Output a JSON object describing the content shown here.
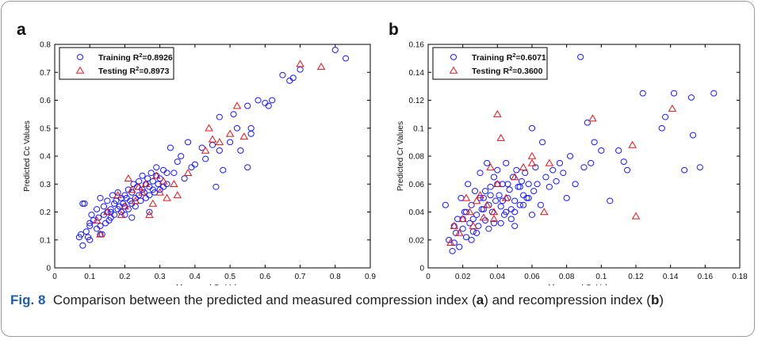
{
  "caption": {
    "fig_label": "Fig. 8",
    "text_1": "Comparison between the predicted and measured compression index (",
    "bold_1": "a",
    "text_2": ") and recompression index (",
    "bold_2": "b",
    "text_3": ")"
  },
  "colors": {
    "training": "#1a1aff",
    "testing": "#e0161a",
    "caption_label": "#1f5fa8"
  },
  "chart_data": [
    {
      "panel": "a",
      "type": "scatter",
      "xlabel": "Measured Cc Values",
      "ylabel": "Predicted Cc Values",
      "xlim": [
        0,
        0.9
      ],
      "ylim": [
        0,
        0.8
      ],
      "xticks": [
        "0",
        "0.1",
        "0.2",
        "0.3",
        "0.4",
        "0.5",
        "0.6",
        "0.7",
        "0.8",
        "0.9"
      ],
      "yticks": [
        "0",
        "0.1",
        "0.2",
        "0.3",
        "0.4",
        "0.5",
        "0.6",
        "0.7",
        "0.8"
      ],
      "legend_position": "top-left",
      "series": [
        {
          "name": "Training R²=0.8926",
          "legend_main": "Training R",
          "legend_sup": "2",
          "legend_rest": "=0.8926",
          "marker": "circle",
          "x": [
            0.07,
            0.075,
            0.08,
            0.085,
            0.09,
            0.095,
            0.1,
            0.1,
            0.105,
            0.11,
            0.12,
            0.12,
            0.125,
            0.13,
            0.13,
            0.135,
            0.14,
            0.14,
            0.145,
            0.15,
            0.15,
            0.155,
            0.16,
            0.16,
            0.165,
            0.17,
            0.17,
            0.175,
            0.18,
            0.18,
            0.185,
            0.19,
            0.19,
            0.195,
            0.2,
            0.2,
            0.2,
            0.205,
            0.21,
            0.21,
            0.215,
            0.22,
            0.22,
            0.225,
            0.23,
            0.23,
            0.235,
            0.24,
            0.24,
            0.245,
            0.25,
            0.25,
            0.255,
            0.26,
            0.26,
            0.265,
            0.27,
            0.27,
            0.275,
            0.28,
            0.28,
            0.285,
            0.29,
            0.29,
            0.295,
            0.3,
            0.3,
            0.31,
            0.31,
            0.32,
            0.33,
            0.34,
            0.35,
            0.36,
            0.37,
            0.38,
            0.39,
            0.4,
            0.42,
            0.43,
            0.45,
            0.46,
            0.47,
            0.48,
            0.5,
            0.51,
            0.52,
            0.53,
            0.55,
            0.55,
            0.56,
            0.58,
            0.6,
            0.61,
            0.62,
            0.65,
            0.67,
            0.68,
            0.7,
            0.8,
            0.83,
            0.08,
            0.1,
            0.13,
            0.16,
            0.22,
            0.27,
            0.32,
            0.47,
            0.56
          ],
          "y": [
            0.11,
            0.12,
            0.08,
            0.23,
            0.13,
            0.11,
            0.16,
            0.1,
            0.19,
            0.17,
            0.14,
            0.21,
            0.18,
            0.15,
            0.25,
            0.12,
            0.19,
            0.22,
            0.16,
            0.2,
            0.24,
            0.17,
            0.21,
            0.18,
            0.26,
            0.23,
            0.19,
            0.24,
            0.21,
            0.27,
            0.22,
            0.25,
            0.2,
            0.23,
            0.26,
            0.22,
            0.19,
            0.25,
            0.28,
            0.21,
            0.24,
            0.27,
            0.23,
            0.3,
            0.25,
            0.22,
            0.29,
            0.26,
            0.31,
            0.24,
            0.28,
            0.33,
            0.27,
            0.3,
            0.25,
            0.32,
            0.29,
            0.26,
            0.34,
            0.28,
            0.31,
            0.27,
            0.33,
            0.36,
            0.3,
            0.28,
            0.32,
            0.29,
            0.35,
            0.3,
            0.43,
            0.34,
            0.38,
            0.4,
            0.32,
            0.45,
            0.36,
            0.37,
            0.43,
            0.39,
            0.44,
            0.29,
            0.54,
            0.35,
            0.45,
            0.55,
            0.5,
            0.42,
            0.58,
            0.36,
            0.5,
            0.6,
            0.59,
            0.58,
            0.6,
            0.69,
            0.67,
            0.68,
            0.71,
            0.78,
            0.75,
            0.23,
            0.15,
            0.12,
            0.2,
            0.18,
            0.2,
            0.34,
            0.42,
            0.48
          ]
        },
        {
          "name": "Testing R²=0.8973",
          "legend_main": "Testing R",
          "legend_sup": "2",
          "legend_rest": "=0.8973",
          "marker": "triangle",
          "x": [
            0.12,
            0.13,
            0.15,
            0.18,
            0.2,
            0.21,
            0.22,
            0.23,
            0.25,
            0.26,
            0.27,
            0.28,
            0.29,
            0.3,
            0.32,
            0.34,
            0.35,
            0.38,
            0.43,
            0.44,
            0.45,
            0.47,
            0.5,
            0.52,
            0.54,
            0.7,
            0.76,
            0.19,
            0.24,
            0.31
          ],
          "y": [
            0.17,
            0.12,
            0.2,
            0.26,
            0.22,
            0.32,
            0.28,
            0.24,
            0.27,
            0.3,
            0.19,
            0.23,
            0.33,
            0.27,
            0.25,
            0.3,
            0.26,
            0.34,
            0.42,
            0.5,
            0.46,
            0.45,
            0.48,
            0.58,
            0.47,
            0.73,
            0.72,
            0.19,
            0.29,
            0.31
          ]
        }
      ]
    },
    {
      "panel": "b",
      "type": "scatter",
      "xlabel": "Measured Cr Values",
      "ylabel": "Predicted Cr Values",
      "xlim": [
        0,
        0.18
      ],
      "ylim": [
        0,
        0.16
      ],
      "xticks": [
        "0",
        "0.02",
        "0.04",
        "0.06",
        "0.08",
        "0.1",
        "0.12",
        "0.14",
        "0.16",
        "0.18"
      ],
      "yticks": [
        "0",
        "0.02",
        "0.04",
        "0.06",
        "0.08",
        "0.1",
        "0.12",
        "0.14",
        "0.16"
      ],
      "legend_position": "top-left",
      "series": [
        {
          "name": "Training R²=0.6071",
          "legend_main": "Training R",
          "legend_sup": "2",
          "legend_rest": "=0.6071",
          "marker": "circle",
          "x": [
            0.01,
            0.012,
            0.014,
            0.015,
            0.016,
            0.017,
            0.018,
            0.019,
            0.02,
            0.021,
            0.022,
            0.023,
            0.024,
            0.025,
            0.026,
            0.027,
            0.028,
            0.029,
            0.03,
            0.031,
            0.032,
            0.033,
            0.034,
            0.035,
            0.036,
            0.037,
            0.038,
            0.039,
            0.04,
            0.041,
            0.042,
            0.043,
            0.044,
            0.045,
            0.046,
            0.047,
            0.048,
            0.049,
            0.05,
            0.051,
            0.052,
            0.053,
            0.054,
            0.055,
            0.056,
            0.057,
            0.058,
            0.06,
            0.061,
            0.062,
            0.063,
            0.065,
            0.066,
            0.068,
            0.07,
            0.072,
            0.074,
            0.076,
            0.078,
            0.08,
            0.082,
            0.085,
            0.088,
            0.09,
            0.092,
            0.094,
            0.096,
            0.1,
            0.105,
            0.11,
            0.113,
            0.115,
            0.124,
            0.135,
            0.137,
            0.142,
            0.148,
            0.152,
            0.153,
            0.157,
            0.165,
            0.02,
            0.025,
            0.03,
            0.035,
            0.04,
            0.045,
            0.05,
            0.055,
            0.06,
            0.015,
            0.022,
            0.028,
            0.033,
            0.038,
            0.043,
            0.048,
            0.053,
            0.058,
            0.026,
            0.032,
            0.036,
            0.042,
            0.046,
            0.05
          ],
          "y": [
            0.045,
            0.02,
            0.012,
            0.03,
            0.025,
            0.035,
            0.015,
            0.05,
            0.028,
            0.04,
            0.022,
            0.06,
            0.032,
            0.045,
            0.026,
            0.055,
            0.038,
            0.03,
            0.068,
            0.042,
            0.05,
            0.034,
            0.075,
            0.045,
            0.058,
            0.04,
            0.065,
            0.048,
            0.07,
            0.052,
            0.044,
            0.06,
            0.038,
            0.075,
            0.05,
            0.056,
            0.042,
            0.065,
            0.048,
            0.07,
            0.058,
            0.045,
            0.062,
            0.052,
            0.068,
            0.05,
            0.06,
            0.1,
            0.055,
            0.072,
            0.06,
            0.045,
            0.09,
            0.065,
            0.058,
            0.07,
            0.062,
            0.075,
            0.068,
            0.05,
            0.08,
            0.06,
            0.151,
            0.072,
            0.104,
            0.075,
            0.09,
            0.084,
            0.048,
            0.084,
            0.076,
            0.07,
            0.125,
            0.1,
            0.108,
            0.125,
            0.07,
            0.122,
            0.095,
            0.072,
            0.125,
            0.035,
            0.02,
            0.05,
            0.028,
            0.06,
            0.04,
            0.03,
            0.045,
            0.038,
            0.018,
            0.04,
            0.025,
            0.055,
            0.032,
            0.048,
            0.035,
            0.058,
            0.05,
            0.035,
            0.042,
            0.052,
            0.032,
            0.06,
            0.04
          ],
          "y_note": ""
        },
        {
          "name": "Testing R²=0.3600",
          "legend_main": "Testing R",
          "legend_sup": "2",
          "legend_rest": "=0.3600",
          "marker": "triangle",
          "x": [
            0.013,
            0.015,
            0.018,
            0.02,
            0.022,
            0.024,
            0.026,
            0.028,
            0.03,
            0.032,
            0.034,
            0.036,
            0.038,
            0.04,
            0.042,
            0.045,
            0.05,
            0.055,
            0.06,
            0.067,
            0.07,
            0.095,
            0.118,
            0.12,
            0.141,
            0.038,
            0.04,
            0.06
          ],
          "y": [
            0.018,
            0.03,
            0.025,
            0.035,
            0.05,
            0.04,
            0.03,
            0.048,
            0.052,
            0.036,
            0.045,
            0.072,
            0.04,
            0.11,
            0.093,
            0.05,
            0.065,
            0.072,
            0.08,
            0.04,
            0.075,
            0.107,
            0.088,
            0.037,
            0.114,
            0.035,
            0.06,
            0.075
          ]
        }
      ]
    }
  ]
}
